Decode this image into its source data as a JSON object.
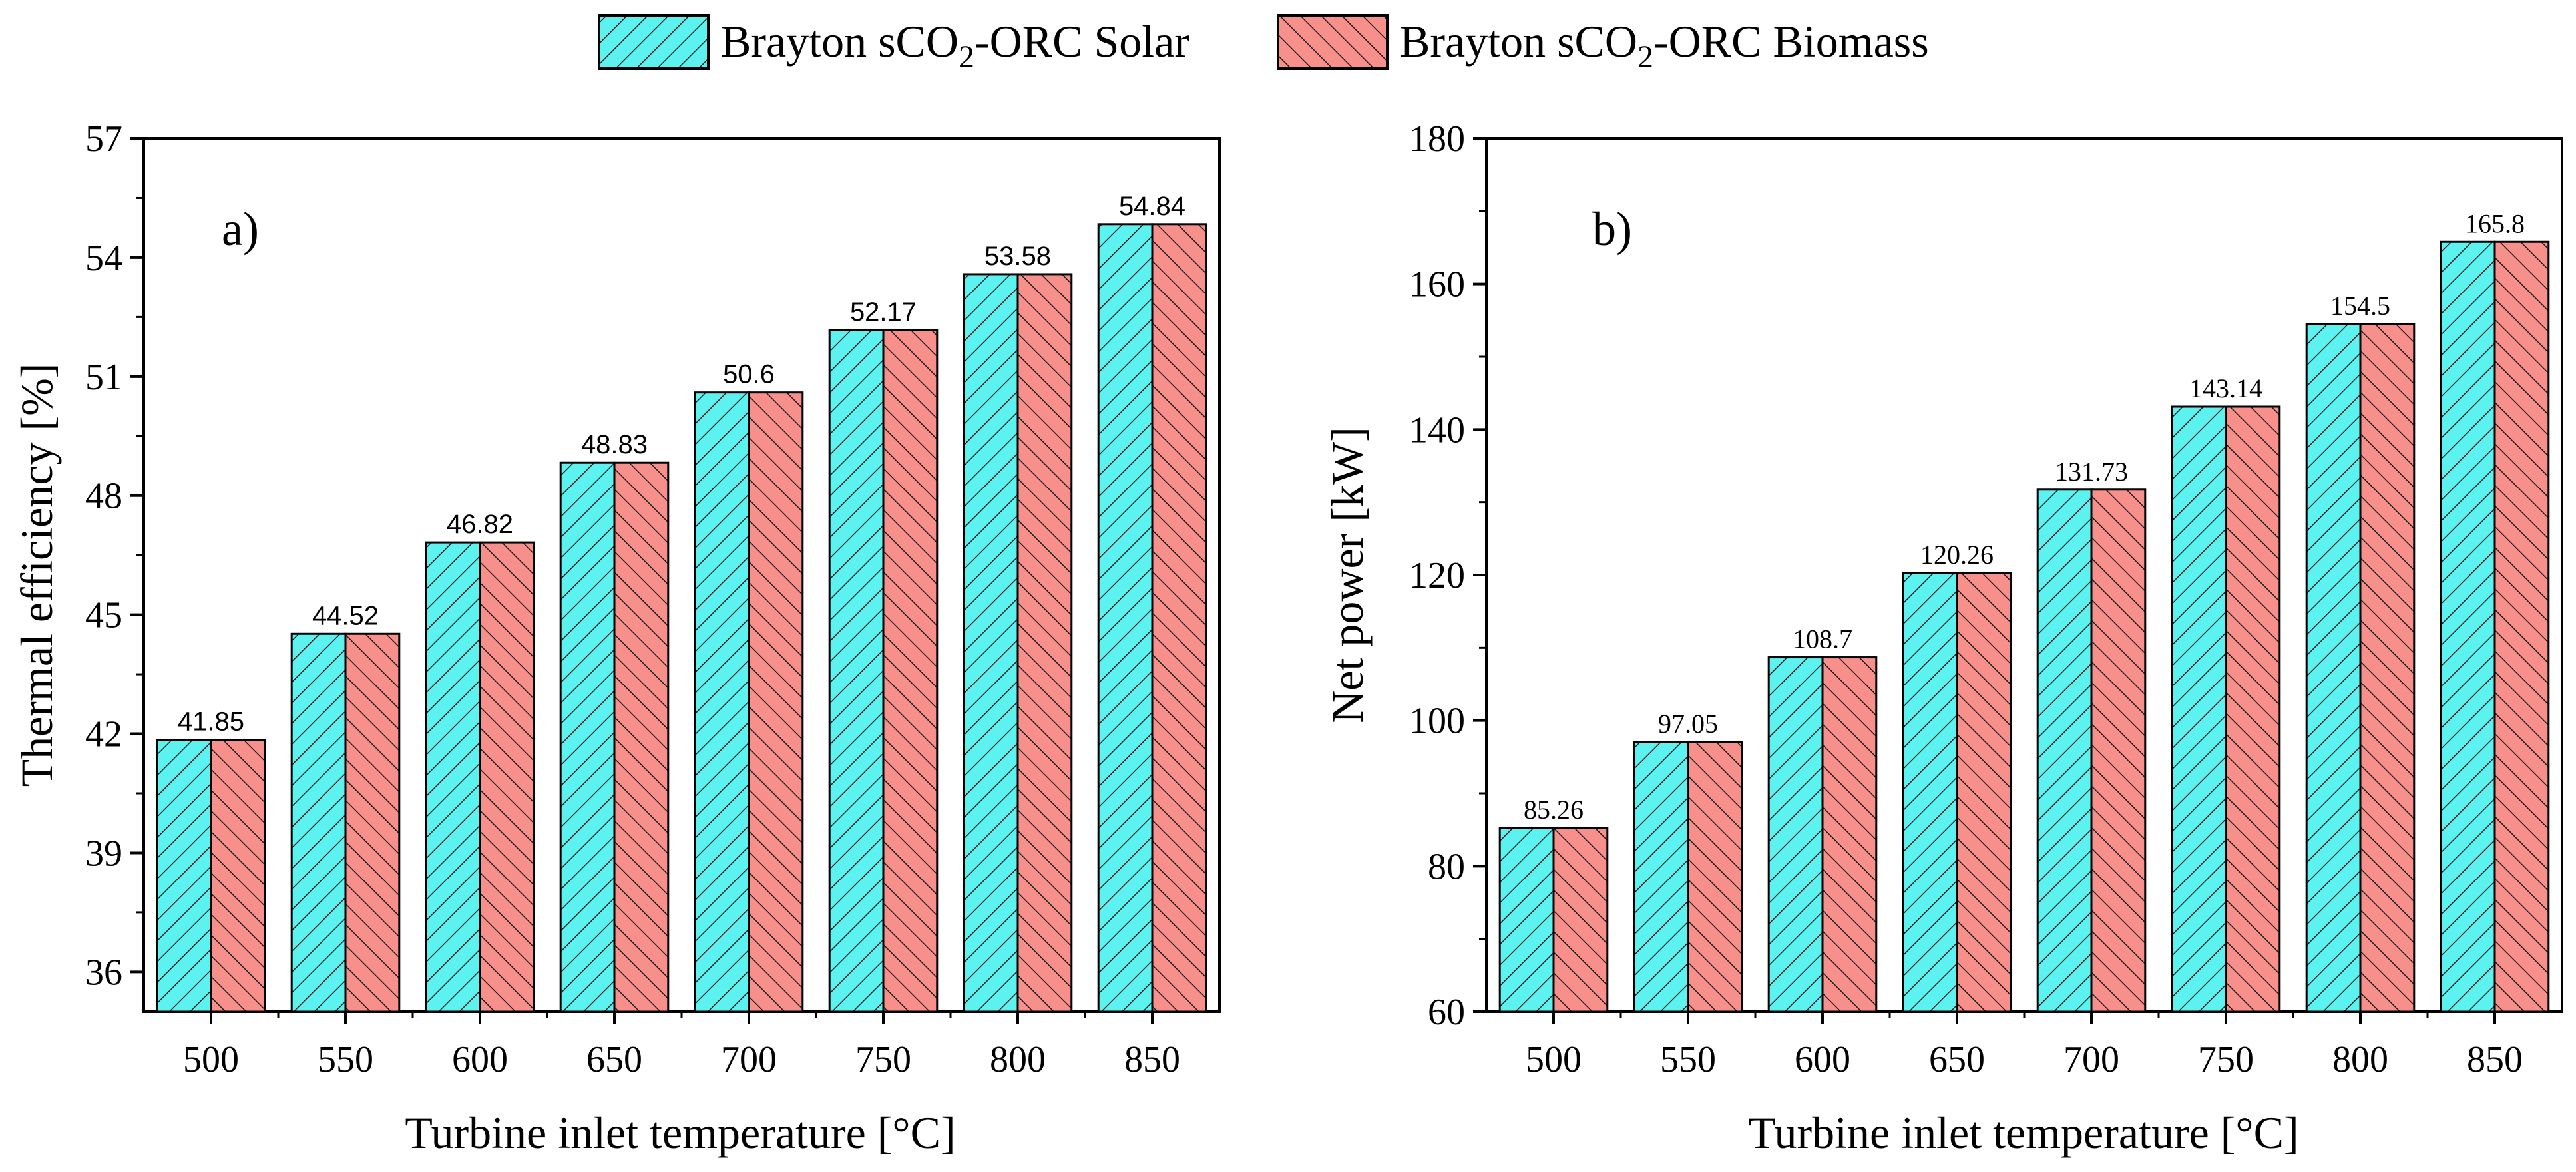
{
  "legend": [
    {
      "name": "Brayton sCO",
      "sub": "2",
      "tail": "-ORC Solar",
      "color": "#5cf2f0",
      "pattern": "hatch-solar"
    },
    {
      "name": "Brayton sCO",
      "sub": "2",
      "tail": "-ORC Biomass",
      "color": "#f78f8b",
      "pattern": "hatch-biomass"
    }
  ],
  "chart_data": [
    {
      "type": "bar",
      "panel_label": "a)",
      "xlabel": "Turbine inlet temperature [°C]",
      "ylabel": "Thermal efficiency [%]",
      "ylim": [
        35,
        57
      ],
      "yticks": [
        36,
        39,
        42,
        45,
        48,
        51,
        54,
        57
      ],
      "categories": [
        "500",
        "550",
        "600",
        "650",
        "700",
        "750",
        "800",
        "850"
      ],
      "series": [
        {
          "name": "Brayton sCO2-ORC Solar",
          "values": [
            41.85,
            44.52,
            46.82,
            48.83,
            50.6,
            52.17,
            53.58,
            54.84
          ]
        },
        {
          "name": "Brayton sCO2-ORC Biomass",
          "values": [
            41.85,
            44.52,
            46.82,
            48.83,
            50.6,
            52.17,
            53.58,
            54.84
          ]
        }
      ],
      "data_labels": [
        "41.85",
        "44.52",
        "46.82",
        "48.83",
        "50.6",
        "52.17",
        "53.58",
        "54.84"
      ],
      "label_font": "sans"
    },
    {
      "type": "bar",
      "panel_label": "b)",
      "xlabel": "Turbine inlet temperature [°C]",
      "ylabel": "Net power [kW]",
      "ylim": [
        60,
        180
      ],
      "yticks": [
        60,
        80,
        100,
        120,
        140,
        160,
        180
      ],
      "categories": [
        "500",
        "550",
        "600",
        "650",
        "700",
        "750",
        "800",
        "850"
      ],
      "series": [
        {
          "name": "Brayton sCO2-ORC Solar",
          "values": [
            85.26,
            97.05,
            108.7,
            120.26,
            131.73,
            143.14,
            154.5,
            165.8
          ]
        },
        {
          "name": "Brayton sCO2-ORC Biomass",
          "values": [
            85.26,
            97.05,
            108.7,
            120.26,
            131.73,
            143.14,
            154.5,
            165.8
          ]
        }
      ],
      "data_labels": [
        "85.26",
        "97.05",
        "108.7",
        "120.26",
        "131.73",
        "143.14",
        "154.5",
        "165.8"
      ],
      "label_font": "serif"
    }
  ]
}
